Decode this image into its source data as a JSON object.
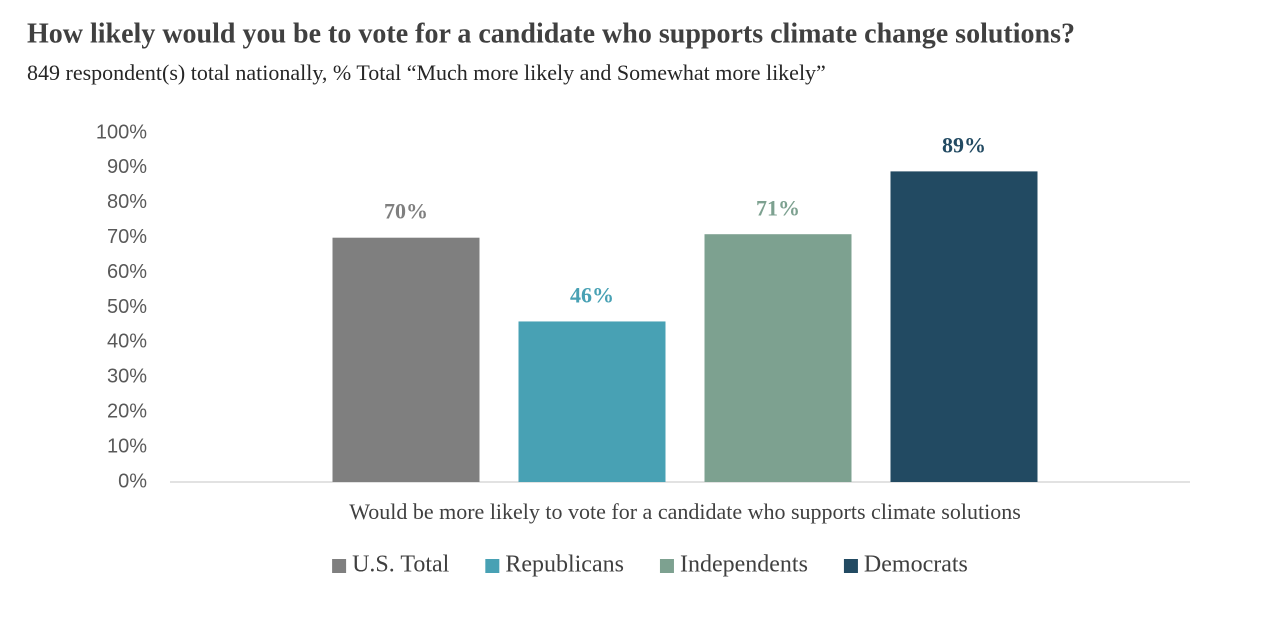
{
  "chart_data": {
    "type": "bar",
    "title": "How likely would you be to vote for a candidate who supports climate change solutions?",
    "subtitle": "849 respondent(s) total nationally, % Total “Much more likely and Somewhat more likely”",
    "categories": [
      "Would be more likely to vote for a candidate who supports climate solutions"
    ],
    "series": [
      {
        "name": "U.S. Total",
        "color": "#7f7f7f",
        "values": [
          70
        ],
        "value_labels": [
          "70%"
        ]
      },
      {
        "name": "Republicans",
        "color": "#48a1b4",
        "values": [
          46
        ],
        "value_labels": [
          "46%"
        ]
      },
      {
        "name": "Independents",
        "color": "#7da190",
        "values": [
          71
        ],
        "value_labels": [
          "71%"
        ]
      },
      {
        "name": "Democrats",
        "color": "#224a62",
        "values": [
          89
        ],
        "value_labels": [
          "89%"
        ]
      }
    ],
    "ylim": [
      0,
      100
    ],
    "yticks": [
      {
        "value": 0,
        "label": "0%"
      },
      {
        "value": 10,
        "label": "10%"
      },
      {
        "value": 20,
        "label": "20%"
      },
      {
        "value": 30,
        "label": "30%"
      },
      {
        "value": 40,
        "label": "40%"
      },
      {
        "value": 50,
        "label": "50%"
      },
      {
        "value": 60,
        "label": "60%"
      },
      {
        "value": 70,
        "label": "70%"
      },
      {
        "value": 80,
        "label": "80%"
      },
      {
        "value": 90,
        "label": "90%"
      },
      {
        "value": 100,
        "label": "100%"
      }
    ],
    "grid": false,
    "legend": "bottom"
  }
}
